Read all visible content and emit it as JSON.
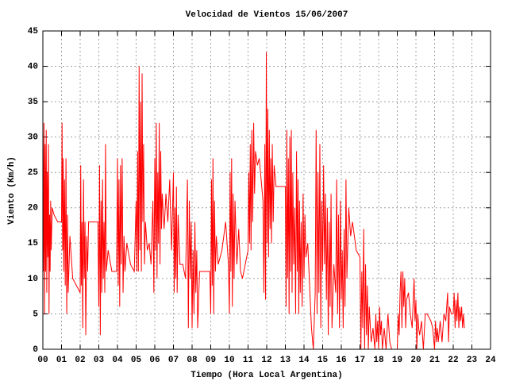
{
  "chart_data": {
    "type": "line",
    "title": "Velocidad de Vientos 15/06/2007",
    "xlabel": "Tiempo (Hora Local Argentina)",
    "ylabel": "Viento (Km/h)",
    "color": "#ff0000",
    "grid": true,
    "xlim": [
      0,
      24
    ],
    "ylim": [
      0,
      45
    ],
    "xticks": [
      {
        "value": 0,
        "label": "00"
      },
      {
        "value": 1,
        "label": "01"
      },
      {
        "value": 2,
        "label": "02"
      },
      {
        "value": 3,
        "label": "03"
      },
      {
        "value": 4,
        "label": "04"
      },
      {
        "value": 5,
        "label": "05"
      },
      {
        "value": 6,
        "label": "06"
      },
      {
        "value": 7,
        "label": "07"
      },
      {
        "value": 8,
        "label": "08"
      },
      {
        "value": 9,
        "label": "09"
      },
      10,
      11,
      12,
      13,
      14,
      15,
      16,
      17,
      18,
      19,
      20,
      21,
      22,
      23,
      24
    ],
    "yticks": [
      0,
      5,
      10,
      15,
      20,
      25,
      30,
      35,
      40,
      45
    ],
    "x": [
      0,
      0.03,
      0.06,
      0.09,
      0.12,
      0.15,
      0.18,
      0.21,
      0.24,
      0.27,
      0.3,
      0.33,
      0.36,
      0.39,
      0.42,
      0.45,
      0.5,
      0.6,
      0.8,
      1,
      1.03,
      1.06,
      1.09,
      1.12,
      1.16,
      1.2,
      1.24,
      1.28,
      1.32,
      1.36,
      1.45,
      1.6,
      2,
      2.03,
      2.06,
      2.1,
      2.14,
      2.18,
      2.22,
      2.26,
      2.3,
      2.35,
      2.4,
      2.45,
      2.7,
      2.95,
      3,
      3.04,
      3.08,
      3.12,
      3.16,
      3.2,
      3.24,
      3.28,
      3.32,
      3.36,
      3.4,
      3.5,
      3.7,
      3.95,
      4,
      4.04,
      4.08,
      4.12,
      4.16,
      4.2,
      4.25,
      4.3,
      4.35,
      4.4,
      4.5,
      4.7,
      4.9,
      5,
      5.04,
      5.08,
      5.12,
      5.16,
      5.2,
      5.24,
      5.28,
      5.32,
      5.36,
      5.4,
      5.45,
      5.5,
      5.6,
      5.7,
      5.8,
      5.9,
      5.95,
      6,
      6.04,
      6.08,
      6.12,
      6.16,
      6.2,
      6.24,
      6.28,
      6.32,
      6.36,
      6.4,
      6.5,
      6.6,
      6.7,
      6.8,
      6.9,
      7,
      7.04,
      7.08,
      7.12,
      7.16,
      7.2,
      7.25,
      7.35,
      7.5,
      7.65,
      7.75,
      7.8,
      7.85,
      7.9,
      7.95,
      8,
      8.05,
      8.1,
      8.15,
      8.2,
      8.25,
      8.3,
      8.4,
      8.7,
      8.95,
      9,
      9.04,
      9.08,
      9.12,
      9.16,
      9.2,
      9.25,
      9.3,
      9.4,
      9.6,
      9.8,
      9.95,
      10,
      10.04,
      10.08,
      10.12,
      10.16,
      10.2,
      10.25,
      10.3,
      10.4,
      10.5,
      10.6,
      10.7,
      11,
      11.04,
      11.08,
      11.12,
      11.16,
      11.2,
      11.25,
      11.3,
      11.35,
      11.4,
      11.5,
      11.6,
      11.7,
      11.8,
      11.85,
      11.9,
      11.94,
      11.98,
      12.02,
      12.06,
      12.1,
      12.14,
      12.18,
      12.22,
      12.26,
      12.3,
      12.35,
      12.4,
      12.5,
      12.75,
      13,
      13.04,
      13.08,
      13.12,
      13.16,
      13.2,
      13.24,
      13.28,
      13.32,
      13.36,
      13.4,
      13.45,
      13.5,
      13.55,
      13.6,
      13.64,
      13.68,
      13.72,
      13.76,
      13.8,
      13.85,
      13.9,
      13.95,
      14,
      14.05,
      14.1,
      14.2,
      14.4,
      14.5,
      14.6,
      14.65,
      14.7,
      14.75,
      14.8,
      14.85,
      14.9,
      14.95,
      15,
      15.05,
      15.1,
      15.15,
      15.2,
      15.25,
      15.3,
      15.35,
      15.4,
      15.45,
      15.5,
      15.6,
      15.7,
      15.75,
      15.8,
      15.85,
      15.9,
      15.95,
      16,
      16.05,
      16.1,
      16.15,
      16.2,
      16.25,
      16.3,
      16.4,
      16.5,
      16.6,
      16.8,
      17,
      17.05,
      17.1,
      17.15,
      17.2,
      17.25,
      17.3,
      17.35,
      17.4,
      17.45,
      17.5,
      17.6,
      17.7,
      17.8,
      17.85,
      17.9,
      17.95,
      18,
      18.05,
      18.1,
      18.15,
      18.2,
      18.3,
      18.4,
      18.5,
      18.6,
      18.7,
      19,
      19.05,
      19.1,
      19.15,
      19.2,
      19.25,
      19.3,
      19.35,
      19.4,
      19.45,
      19.5,
      19.6,
      19.7,
      19.8,
      19.9,
      19.95,
      20,
      20.05,
      20.1,
      20.15,
      20.2,
      20.3,
      20.4,
      20.5,
      20.6,
      20.8,
      20.9,
      21,
      21.05,
      21.1,
      21.15,
      21.2,
      21.3,
      21.4,
      21.5,
      21.6,
      21.7,
      21.75,
      21.8,
      21.9,
      22,
      22.05,
      22.1,
      22.15,
      22.2,
      22.25,
      22.3,
      22.35,
      22.4,
      22.45,
      22.5,
      22.55,
      22.6
    ],
    "values": [
      31,
      11,
      32,
      5,
      29,
      11,
      31,
      8,
      25,
      13,
      29,
      5,
      19,
      11,
      21,
      14,
      20,
      19,
      18,
      18,
      32,
      14,
      27,
      11,
      24,
      9,
      27,
      5,
      19,
      8,
      16,
      10,
      8,
      26,
      9,
      18,
      3,
      24,
      10,
      18,
      2,
      16,
      11,
      18,
      18,
      18,
      6,
      26,
      2,
      21,
      8,
      24,
      10,
      18,
      8,
      29,
      11,
      14,
      11,
      11,
      27,
      9,
      24,
      6,
      26,
      12,
      27,
      8,
      16,
      11,
      15,
      12,
      11,
      21,
      11,
      28,
      11,
      40,
      14,
      35,
      11,
      39,
      18,
      29,
      12,
      18,
      14,
      15,
      12,
      21,
      8,
      27,
      14,
      32,
      10,
      25,
      15,
      32,
      12,
      28,
      17,
      22,
      17,
      22,
      18,
      24,
      14,
      25,
      8,
      20,
      10,
      23,
      8,
      19,
      12,
      12,
      10,
      24,
      3,
      21,
      10,
      18,
      3,
      14,
      5,
      18,
      8,
      14,
      3,
      11,
      11,
      11,
      5,
      24,
      9,
      27,
      5,
      21,
      11,
      16,
      12,
      14,
      18,
      12,
      5,
      25,
      11,
      27,
      6,
      22,
      10,
      21,
      12,
      17,
      11,
      10,
      14,
      25,
      15,
      29,
      14,
      31,
      18,
      32,
      22,
      28,
      26,
      27,
      24,
      21,
      8,
      29,
      7,
      42,
      15,
      34,
      13,
      31,
      17,
      27,
      15,
      29,
      18,
      26,
      23,
      23,
      23,
      6,
      31,
      10,
      27,
      5,
      30,
      11,
      31,
      8,
      25,
      12,
      20,
      5,
      28,
      11,
      24,
      5,
      21,
      8,
      18,
      6,
      22,
      10,
      19,
      13,
      15,
      3,
      0,
      8,
      31,
      5,
      25,
      8,
      29,
      3,
      21,
      11,
      26,
      12,
      22,
      7,
      20,
      2,
      18,
      6,
      22,
      3,
      12,
      8,
      24,
      5,
      19,
      3,
      21,
      7,
      14,
      3,
      17,
      6,
      24,
      10,
      20,
      16,
      18,
      14,
      13,
      0,
      11,
      3,
      17,
      0,
      12,
      2,
      9,
      0,
      6,
      1,
      3,
      0,
      5,
      1,
      4,
      0,
      6,
      2,
      4,
      0,
      3,
      0,
      5,
      1,
      0,
      0,
      5,
      2,
      8,
      11,
      3,
      11,
      6,
      10,
      3,
      7,
      8,
      5,
      3,
      10,
      4,
      7,
      0,
      5,
      3,
      2,
      4,
      0,
      5,
      5,
      4,
      3,
      0,
      4,
      1,
      3,
      1,
      4,
      1,
      5,
      4,
      8,
      1,
      6,
      5,
      5,
      8,
      3,
      7,
      4,
      8,
      3,
      6,
      4,
      6,
      3,
      5,
      3
    ]
  }
}
